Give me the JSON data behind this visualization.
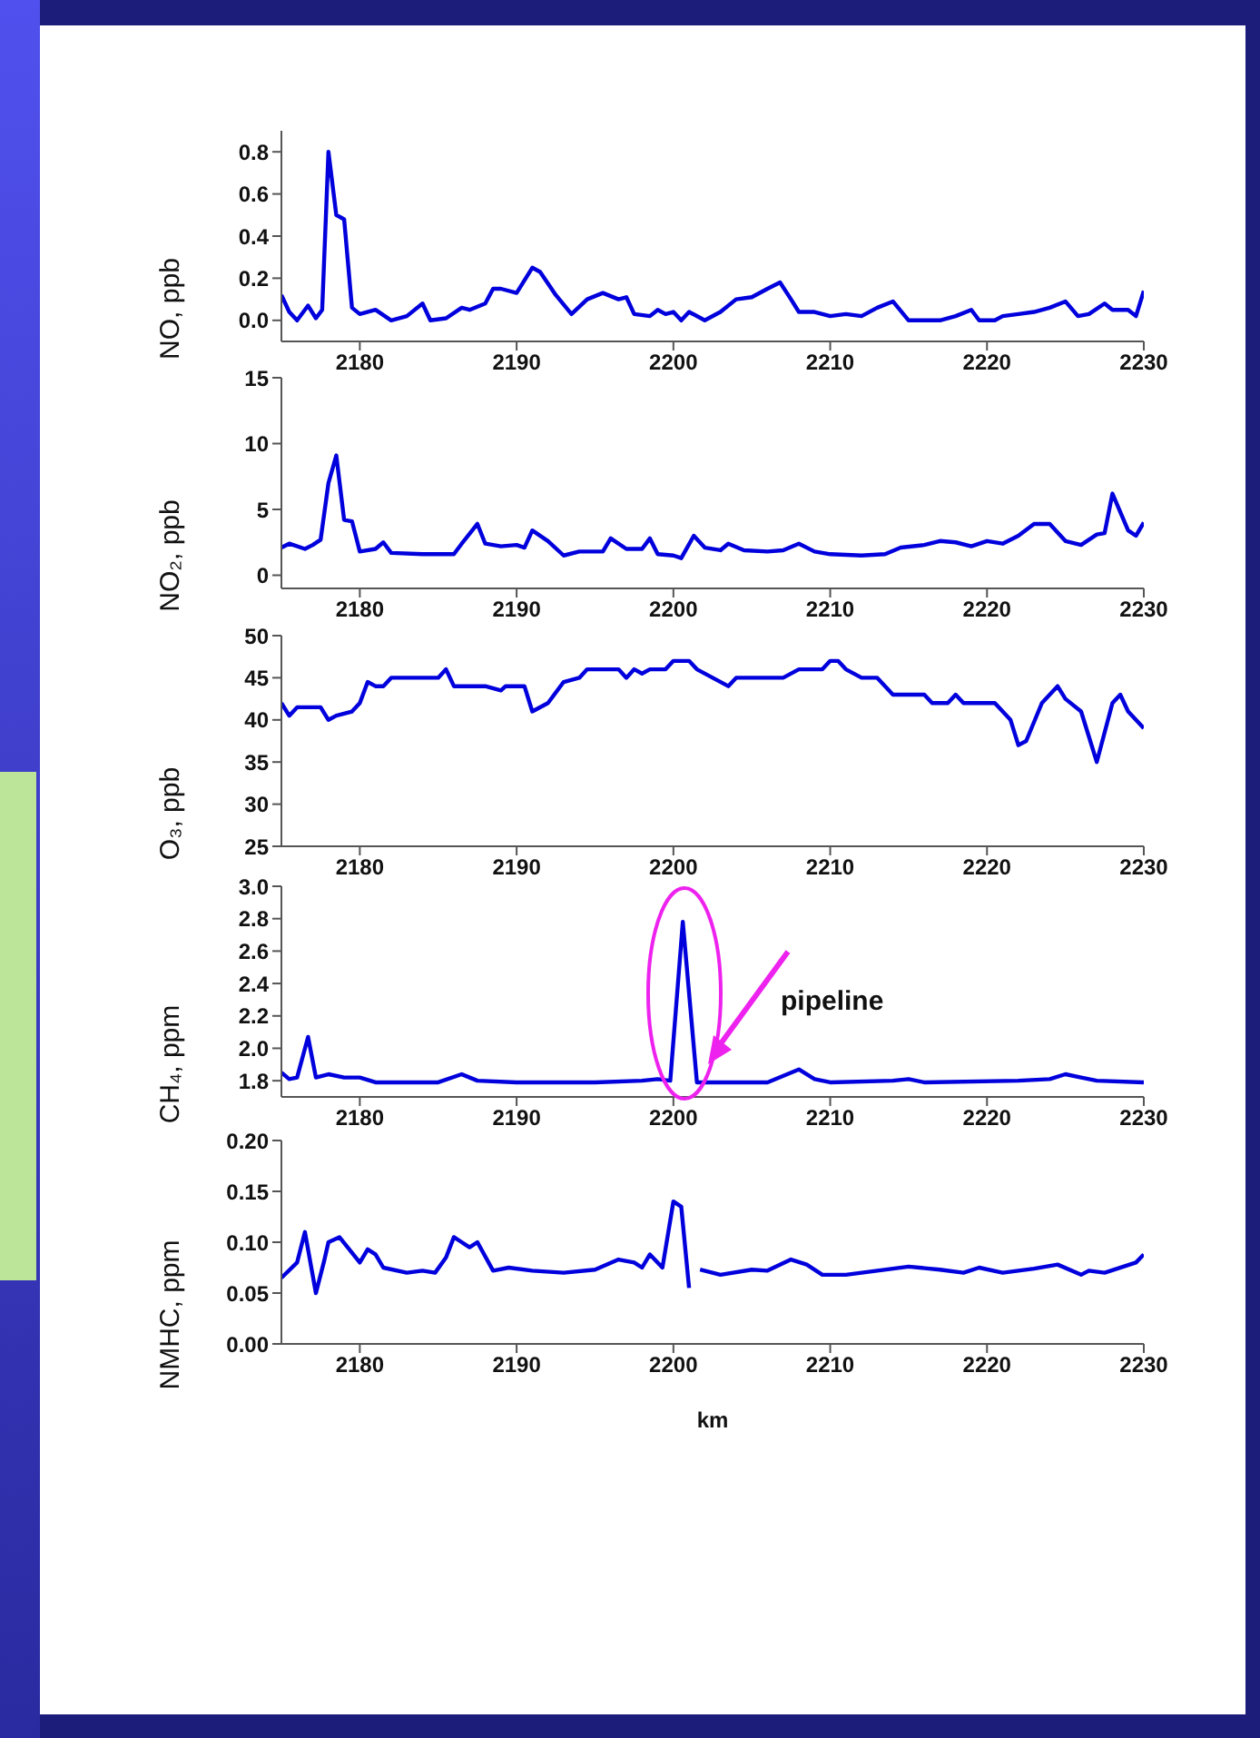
{
  "chart_data": [
    {
      "type": "line",
      "ylabel": "NO, ppb",
      "color": "#0000dd",
      "xlim": [
        2175,
        2230
      ],
      "xticks": [
        2180,
        2190,
        2200,
        2210,
        2220,
        2230
      ],
      "ylim": [
        -0.1,
        0.9
      ],
      "yticks": [
        {
          "value": 0,
          "label": "0.0"
        },
        0.2,
        0.4,
        0.6,
        0.8
      ],
      "x": [
        2175,
        2175.5,
        2176,
        2176.7,
        2177.2,
        2177.6,
        2178,
        2178.5,
        2179,
        2179.5,
        2180,
        2181,
        2182,
        2183,
        2184,
        2184.5,
        2185.5,
        2186.5,
        2187,
        2188,
        2188.5,
        2189,
        2190,
        2191,
        2191.5,
        2192.5,
        2193.5,
        2194.5,
        2195.5,
        2196.5,
        2197,
        2197.5,
        2198.5,
        2199,
        2199.5,
        2200,
        2200.5,
        2201,
        2202,
        2203,
        2204,
        2205,
        2206,
        2206.8,
        2207.5,
        2208,
        2209,
        2210,
        2211,
        2212,
        2213,
        2214,
        2215,
        2216,
        2217,
        2218,
        2219,
        2219.5,
        2220.5,
        2221,
        2222,
        2223,
        2224,
        2225,
        2225.8,
        2226.5,
        2227.5,
        2228,
        2229,
        2229.5,
        2230
      ],
      "values": [
        0.12,
        0.04,
        0.0,
        0.07,
        0.01,
        0.05,
        0.8,
        0.5,
        0.48,
        0.06,
        0.03,
        0.05,
        0.0,
        0.02,
        0.08,
        0.0,
        0.01,
        0.06,
        0.05,
        0.08,
        0.15,
        0.15,
        0.13,
        0.25,
        0.23,
        0.12,
        0.03,
        0.1,
        0.13,
        0.1,
        0.11,
        0.03,
        0.02,
        0.05,
        0.03,
        0.04,
        0.0,
        0.04,
        0.0,
        0.04,
        0.1,
        0.11,
        0.15,
        0.18,
        0.1,
        0.04,
        0.04,
        0.02,
        0.03,
        0.02,
        0.06,
        0.09,
        0.0,
        0.0,
        0.0,
        0.02,
        0.05,
        0.0,
        0.0,
        0.02,
        0.03,
        0.04,
        0.06,
        0.09,
        0.02,
        0.03,
        0.08,
        0.05,
        0.05,
        0.02,
        0.14
      ]
    },
    {
      "type": "line",
      "ylabel": "NO₂, ppb",
      "color": "#0000dd",
      "xlim": [
        2175,
        2230
      ],
      "xticks": [
        2180,
        2190,
        2200,
        2210,
        2220,
        2230
      ],
      "ylim": [
        -1,
        15
      ],
      "yticks": [
        0,
        5,
        10,
        15
      ],
      "x": [
        2175,
        2175.5,
        2176.5,
        2177,
        2177.5,
        2178,
        2178.5,
        2179,
        2179.5,
        2180,
        2181,
        2181.5,
        2182,
        2184,
        2186,
        2186.5,
        2187.5,
        2188,
        2189,
        2190,
        2190.5,
        2191,
        2192,
        2193,
        2194,
        2195.5,
        2196,
        2197,
        2198,
        2198.5,
        2199,
        2200,
        2200.5,
        2201.3,
        2202,
        2203,
        2203.5,
        2204.5,
        2206,
        2207,
        2208,
        2209,
        2210,
        2212,
        2213.5,
        2214.5,
        2216,
        2217,
        2218,
        2219,
        2220,
        2221,
        2222,
        2223,
        2224,
        2225,
        2226,
        2227,
        2227.5,
        2228,
        2229,
        2229.5,
        2230
      ],
      "values": [
        2.1,
        2.4,
        2,
        2.3,
        2.7,
        7,
        9.1,
        4.2,
        4.1,
        1.8,
        2.0,
        2.5,
        1.7,
        1.6,
        1.6,
        2.4,
        3.9,
        2.4,
        2.2,
        2.3,
        2.1,
        3.4,
        2.6,
        1.5,
        1.8,
        1.8,
        2.8,
        2.0,
        2.0,
        2.8,
        1.6,
        1.5,
        1.3,
        3.0,
        2.1,
        1.9,
        2.4,
        1.9,
        1.8,
        1.9,
        2.4,
        1.8,
        1.6,
        1.5,
        1.6,
        2.1,
        2.3,
        2.6,
        2.5,
        2.2,
        2.6,
        2.4,
        3.0,
        3.9,
        3.9,
        2.6,
        2.3,
        3.1,
        3.2,
        6.2,
        3.4,
        3.0,
        4.0
      ]
    },
    {
      "type": "line",
      "ylabel": "O₃, ppb",
      "color": "#0000dd",
      "xlim": [
        2175,
        2230
      ],
      "xticks": [
        2180,
        2190,
        2200,
        2210,
        2220,
        2230
      ],
      "ylim": [
        25,
        50
      ],
      "yticks": [
        25,
        30,
        35,
        40,
        45,
        50
      ],
      "x": [
        2175,
        2175.5,
        2176,
        2177.5,
        2178,
        2178.5,
        2179.5,
        2180,
        2180.5,
        2181,
        2181.5,
        2182,
        2185,
        2185.5,
        2186,
        2188,
        2189,
        2189.3,
        2190.5,
        2191,
        2192,
        2193,
        2194,
        2194.5,
        2196.5,
        2197,
        2197.5,
        2198,
        2198.5,
        2199.5,
        2200,
        2201,
        2201.5,
        2202.5,
        2203.5,
        2204,
        2206,
        2207,
        2208,
        2209.5,
        2210,
        2210.5,
        2211,
        2212,
        2213,
        2214,
        2216,
        2216.5,
        2217.5,
        2218,
        2218.5,
        2220.5,
        2221.5,
        2222,
        2222.5,
        2223.5,
        2224.5,
        2225,
        2226,
        2227,
        2228,
        2228.5,
        2229,
        2230
      ],
      "values": [
        42,
        40.5,
        41.5,
        41.5,
        40,
        40.5,
        41,
        42,
        44.5,
        44,
        44,
        45,
        45,
        46,
        44,
        44,
        43.5,
        44,
        44,
        41,
        42,
        44.5,
        45,
        46,
        46,
        45,
        46,
        45.5,
        46,
        46,
        47,
        47,
        46,
        45,
        44,
        45,
        45,
        45,
        46,
        46,
        47,
        47,
        46,
        45,
        45,
        43,
        43,
        42,
        42,
        43,
        42,
        42,
        40,
        37,
        37.5,
        42,
        44,
        42.5,
        41,
        35,
        42,
        43,
        41,
        39
      ]
    },
    {
      "type": "line",
      "ylabel": "CH₄, ppm",
      "color": "#0000dd",
      "xlim": [
        2175,
        2230
      ],
      "xticks": [
        2180,
        2190,
        2200,
        2210,
        2220,
        2230
      ],
      "ylim": [
        1.7,
        3.0
      ],
      "yticks": [
        1.8,
        {
          "value": 2,
          "label": "2.0"
        },
        2.2,
        2.4,
        2.6,
        2.8,
        {
          "value": 3,
          "label": "3.0"
        }
      ],
      "annotations": [
        "pipeline"
      ],
      "x": [
        2175,
        2175.5,
        2176,
        2176.7,
        2177.2,
        2178,
        2179,
        2180,
        2181,
        2183,
        2185,
        2186.5,
        2187.5,
        2190,
        2195,
        2198,
        2199,
        2199.8,
        2200.6,
        2201.5,
        2203,
        2206,
        2208,
        2209,
        2210,
        2214,
        2215,
        2216,
        2222,
        2224,
        2225,
        2226,
        2227,
        2230
      ],
      "values": [
        1.85,
        1.81,
        1.82,
        2.07,
        1.82,
        1.84,
        1.82,
        1.82,
        1.79,
        1.79,
        1.79,
        1.84,
        1.8,
        1.79,
        1.79,
        1.8,
        1.81,
        1.8,
        2.78,
        1.79,
        1.79,
        1.79,
        1.87,
        1.81,
        1.79,
        1.8,
        1.81,
        1.79,
        1.8,
        1.81,
        1.84,
        1.82,
        1.8,
        1.79
      ]
    },
    {
      "type": "line",
      "xlabel": "km",
      "ylabel": "NMHC, ppm",
      "color": "#0000dd",
      "xlim": [
        2175,
        2230
      ],
      "xticks": [
        2180,
        2190,
        2200,
        2210,
        2220,
        2230
      ],
      "ylim": [
        0,
        0.2
      ],
      "yticks": [
        {
          "value": 0,
          "label": "0.00"
        },
        0.05,
        {
          "value": 0.1,
          "label": "0.10"
        },
        0.15,
        {
          "value": 0.2,
          "label": "0.20"
        }
      ],
      "x": [
        2175,
        2176,
        2176.5,
        2177.2,
        2177.7,
        2178,
        2178.7,
        2180,
        2180.5,
        2181,
        2181.5,
        2183,
        2184,
        2184.8,
        2185.5,
        2186,
        2186.5,
        2187,
        2187.5,
        2188.5,
        2189.5,
        2191,
        2193,
        2195,
        2196.5,
        2197.5,
        2198,
        2198.5,
        2199.3,
        2200,
        2200.5,
        2201,
        2201.3,
        2201.7,
        2203,
        2205,
        2206,
        2207.5,
        2208.5,
        2209.5,
        2211,
        2213,
        2215,
        2217,
        2218.5,
        2219.5,
        2221,
        2223,
        2224.5,
        2226,
        2226.5,
        2227.5,
        2229.5,
        2230
      ],
      "values": [
        0.065,
        0.08,
        0.11,
        0.05,
        0.08,
        0.1,
        0.105,
        0.08,
        0.093,
        0.088,
        0.075,
        0.07,
        0.072,
        0.07,
        0.085,
        0.105,
        0.1,
        0.095,
        0.1,
        0.072,
        0.075,
        0.072,
        0.07,
        0.073,
        0.083,
        0.08,
        0.075,
        0.088,
        0.075,
        0.14,
        0.135,
        0.055,
        null,
        0.073,
        0.068,
        0.073,
        0.072,
        0.083,
        0.078,
        0.068,
        0.068,
        0.072,
        0.076,
        0.073,
        0.07,
        0.075,
        0.07,
        0.074,
        0.078,
        0.068,
        0.072,
        0.07,
        0.08,
        0.088
      ]
    }
  ]
}
